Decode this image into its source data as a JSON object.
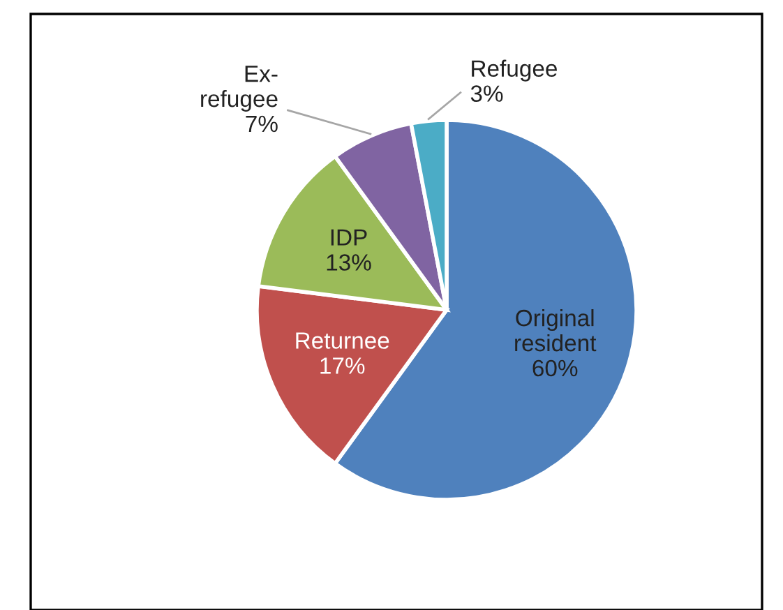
{
  "chart_data": {
    "type": "pie",
    "categories": [
      "Original resident",
      "Returnee",
      "IDP",
      "Ex-refugee",
      "Refugee"
    ],
    "values": [
      60,
      17,
      13,
      7,
      3
    ],
    "colors": [
      "#4f81bd",
      "#c0504d",
      "#9bbb59",
      "#8064a2",
      "#4bacc6"
    ],
    "value_labels": [
      "60%",
      "17%",
      "13%",
      "7%",
      "3%"
    ],
    "legend": false
  }
}
